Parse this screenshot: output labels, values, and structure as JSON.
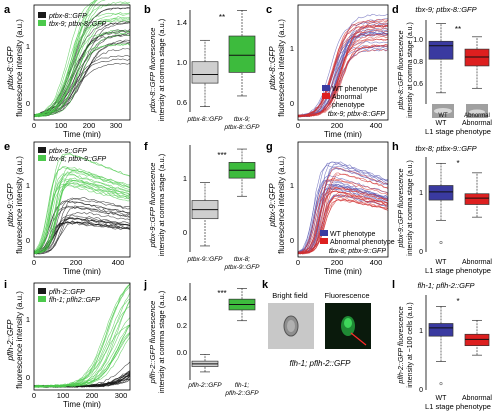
{
  "figure": {
    "panels": {
      "a": {
        "letter": "a",
        "y_label": [
          "ptbx-8::GFP",
          "fluorescence intensity (a.u.)"
        ],
        "x_label": "Time (min)",
        "x_ticks": [
          "0",
          "100",
          "200",
          "300"
        ],
        "y_ticks": [
          "0",
          "1"
        ],
        "legend": [
          "ptbx-8::GFP",
          "tbx-9; ptbx-8::GFP"
        ]
      },
      "b": {
        "letter": "b",
        "y_label": [
          "ptbx-8::GFP fluorescence",
          "intensity at comma stage (a.u.)"
        ],
        "y_ticks": [
          "0.6",
          "1.0",
          "1.4"
        ],
        "x_labels": [
          [
            "ptbx-8::GFP"
          ],
          [
            "tbx-9;",
            "ptbx-8::GFP"
          ]
        ],
        "significance": "**"
      },
      "c": {
        "letter": "c",
        "y_label": [
          "ptbx-8::GFP",
          "fluorescence intensity (a.u.)"
        ],
        "x_label": "Time (min)",
        "x_ticks": [
          "0",
          "200",
          "400"
        ],
        "y_ticks": [
          "0",
          "1"
        ],
        "legend": [
          "WT phenotype",
          "Abnormal",
          "phenotype"
        ],
        "genotype": "tbx-9; ptbx-8::GFP"
      },
      "d": {
        "letter": "d",
        "title": "tbx-9; ptbx-8::GFP",
        "y_label": [
          "ptbx-8::GFP fluorescence",
          "intensity at comma stage (a.u.)"
        ],
        "y_ticks": [
          "0.6",
          "0.8",
          "1.0"
        ],
        "x_labels": [
          "WT",
          "Abnormal"
        ],
        "x_caption": "L1 stage phenotype",
        "significance": "**",
        "inset_labels": [
          "WT",
          "Abnormal"
        ]
      },
      "e": {
        "letter": "e",
        "y_label": [
          "ptbx-9::GFP",
          "fluorescence intensity (a.u.)"
        ],
        "x_label": "Time (min)",
        "x_ticks": [
          "0",
          "200",
          "400"
        ],
        "y_ticks": [
          "0",
          "1"
        ],
        "legend": [
          "ptbx-9::GFP",
          "tbx-8; ptbx-9::GFP"
        ]
      },
      "f": {
        "letter": "f",
        "y_label": [
          "ptbx-9::GFP fluorescence",
          "intensity at comma stage (a.u.)"
        ],
        "y_ticks": [
          "0",
          "1"
        ],
        "x_labels": [
          [
            "ptbx-9::GFP"
          ],
          [
            "tbx-8;",
            "ptbx-9::GFP"
          ]
        ],
        "significance": "***"
      },
      "g": {
        "letter": "g",
        "y_label": [
          "ptbx-9::GFP",
          "fluorescence intensity (a.u.)"
        ],
        "x_label": "Time (min)",
        "x_ticks": [
          "0",
          "200",
          "400"
        ],
        "y_ticks": [
          "0",
          "1"
        ],
        "legend": [
          "WT phenotype",
          "Abnormal phenotype"
        ],
        "genotype": "tbx-8; ptbx-9::GFP"
      },
      "h": {
        "letter": "h",
        "title": "tbx-8; ptbx-9::GFP",
        "y_label": [
          "ptbx-9::GFP fluorescence",
          "intensity at comma stage (a.u.)"
        ],
        "y_ticks": [
          "0",
          "1"
        ],
        "x_labels": [
          "WT",
          "Abnormal"
        ],
        "x_caption": "L1 stage phenotype",
        "significance": "*"
      },
      "i": {
        "letter": "i",
        "y_label": [
          "pflh-2::GFP",
          "fluorescence intensity (a.u.)"
        ],
        "x_label": "Time (min)",
        "x_ticks": [
          "0",
          "100",
          "200",
          "300"
        ],
        "y_ticks": [
          "0",
          "1"
        ],
        "legend": [
          "pflh-2::GFP",
          "flh-1; pflh2::GFP"
        ]
      },
      "j": {
        "letter": "j",
        "y_label": [
          "pflh-2::GFP fluorescence",
          "intensity at comma stage (a.u.)"
        ],
        "y_ticks": [
          "0.0",
          "0.2",
          "0.4"
        ],
        "x_labels": [
          [
            "pflh-2::GFP"
          ],
          [
            "flh-1;",
            "pflh-2::GFP"
          ]
        ],
        "significance": "***"
      },
      "k": {
        "letter": "k",
        "image_titles": [
          "Bright field",
          "Fluorescence"
        ],
        "caption": "flh-1; pflh-2::GFP"
      },
      "l": {
        "letter": "l",
        "title": "flh-1; pflh-2::GFP",
        "y_label": [
          "pflh-2::GFP fluorescence",
          "intensity at ~100 cells (a.u.)"
        ],
        "y_ticks": [
          "0",
          "1"
        ],
        "x_labels": [
          "WT",
          "Abnormal"
        ],
        "x_caption": "L1 stage phenotype",
        "significance": "*"
      }
    },
    "colors": {
      "black_trace": "#1a1a1a",
      "green_trace": "#4cc94c",
      "green_box": "#3dbb3d",
      "gray_box": "#cfcfcf",
      "blue_box": "#3a3aa0",
      "red_box": "#dd1f1f",
      "blue_trace": "#5b5bb5",
      "red_trace": "#d23030"
    },
    "chart_data": [
      {
        "panel": "b",
        "type": "box",
        "categories": [
          "ptbx-8::GFP",
          "tbx-9; ptbx-8::GFP"
        ],
        "boxes": [
          {
            "whisker_low": 0.6,
            "q1": 0.82,
            "median": 0.9,
            "q3": 1.02,
            "whisker_high": 1.22
          },
          {
            "whisker_low": 0.7,
            "q1": 0.92,
            "median": 1.08,
            "q3": 1.26,
            "whisker_high": 1.5
          }
        ],
        "ylim": [
          0.55,
          1.55
        ]
      },
      {
        "panel": "d",
        "type": "box",
        "categories": [
          "WT",
          "Abnormal"
        ],
        "boxes": [
          {
            "whisker_low": 0.6,
            "q1": 0.9,
            "median": 1.02,
            "q3": 1.06,
            "whisker_high": 1.22
          },
          {
            "whisker_low": 0.64,
            "q1": 0.84,
            "median": 0.92,
            "q3": 0.99,
            "whisker_high": 1.1
          }
        ],
        "ylim": [
          0.5,
          1.25
        ]
      },
      {
        "panel": "f",
        "type": "box",
        "categories": [
          "ptbx-9::GFP",
          "tbx-8; ptbx-9::GFP"
        ],
        "boxes": [
          {
            "whisker_low": -0.2,
            "q1": 0.25,
            "median": 0.4,
            "q3": 0.55,
            "whisker_high": 0.85
          },
          {
            "whisker_low": 0.62,
            "q1": 0.92,
            "median": 1.05,
            "q3": 1.18,
            "whisker_high": 1.4
          }
        ],
        "ylim": [
          -0.3,
          1.5
        ]
      },
      {
        "panel": "h",
        "type": "box",
        "categories": [
          "WT",
          "Abnormal"
        ],
        "boxes": [
          {
            "whisker_low": 0.5,
            "q1": 0.82,
            "median": 0.95,
            "q3": 1.05,
            "whisker_high": 1.4,
            "outliers": [
              0.15
            ]
          },
          {
            "whisker_low": 0.55,
            "q1": 0.75,
            "median": 0.85,
            "q3": 0.92,
            "whisker_high": 1.25
          }
        ],
        "ylim": [
          0,
          1.5
        ]
      },
      {
        "panel": "j",
        "type": "box",
        "categories": [
          "pflh-2::GFP",
          "flh-1; pflh-2::GFP"
        ],
        "boxes": [
          {
            "whisker_low": -0.06,
            "q1": -0.02,
            "median": 0.0,
            "q3": 0.02,
            "whisker_high": 0.07
          },
          {
            "whisker_low": 0.32,
            "q1": 0.4,
            "median": 0.44,
            "q3": 0.48,
            "whisker_high": 0.56
          }
        ],
        "ylim": [
          -0.12,
          0.6
        ]
      },
      {
        "panel": "l",
        "type": "box",
        "categories": [
          "WT",
          "Abnormal"
        ],
        "boxes": [
          {
            "whisker_low": 0.45,
            "q1": 0.85,
            "median": 0.98,
            "q3": 1.05,
            "whisker_high": 1.32,
            "outliers": [
              0.1
            ]
          },
          {
            "whisker_low": 0.55,
            "q1": 0.7,
            "median": 0.8,
            "q3": 0.88,
            "whisker_high": 1.1
          }
        ],
        "ylim": [
          0,
          1.5
        ]
      },
      {
        "panel": "a",
        "type": "line",
        "xlim": [
          0,
          350
        ],
        "ylim": [
          -0.05,
          1.55
        ],
        "series": [
          {
            "name": "ptbx-8::GFP",
            "color": "black_trace",
            "shape": [
              160,
              1.15,
              0.75,
              0.03
            ]
          },
          {
            "name": "tbx-9; ptbx-8::GFP",
            "color": "green_trace",
            "shape": [
              150,
              1.35,
              0.55,
              0.035
            ]
          }
        ]
      },
      {
        "panel": "c",
        "type": "line",
        "xlim": [
          0,
          460
        ],
        "ylim": [
          -0.05,
          1.5
        ],
        "series": [
          {
            "name": "WT phenotype",
            "color": "blue_trace",
            "shape": [
              190,
              1.15,
              0.45,
              0.03
            ]
          },
          {
            "name": "Abnormal phenotype",
            "color": "red_trace",
            "shape": [
              200,
              1.1,
              0.4,
              0.03
            ]
          }
        ]
      },
      {
        "panel": "e",
        "type": "line",
        "xlim": [
          0,
          460
        ],
        "ylim": [
          -0.05,
          1.5
        ],
        "series": [
          {
            "name": "ptbx-9::GFP",
            "color": "black_trace",
            "shape": [
              100,
              0.6,
              0.6,
              0.05
            ]
          },
          {
            "name": "tbx-8; ptbx-9::GFP",
            "color": "green_trace",
            "shape": [
              90,
              1.15,
              0.45,
              0.055
            ]
          }
        ]
      },
      {
        "panel": "g",
        "type": "line",
        "xlim": [
          0,
          460
        ],
        "ylim": [
          -0.05,
          1.5
        ],
        "series": [
          {
            "name": "WT phenotype",
            "color": "blue_trace",
            "shape": [
              100,
              1.05,
              0.5,
              0.055
            ]
          },
          {
            "name": "Abnormal phenotype",
            "color": "red_trace",
            "shape": [
              110,
              0.95,
              0.5,
              0.05
            ]
          }
        ]
      },
      {
        "panel": "i",
        "type": "line",
        "xlim": [
          0,
          330
        ],
        "ylim": [
          -0.05,
          1.4
        ],
        "series": [
          {
            "name": "pflh-2::GFP",
            "color": "black_trace",
            "shape": [
              330,
              0.35,
              0.7,
              0.03
            ]
          },
          {
            "name": "flh-1; pflh2::GFP",
            "color": "green_trace",
            "shape": [
              270,
              1.2,
              0.6,
              0.03
            ]
          }
        ]
      }
    ]
  }
}
